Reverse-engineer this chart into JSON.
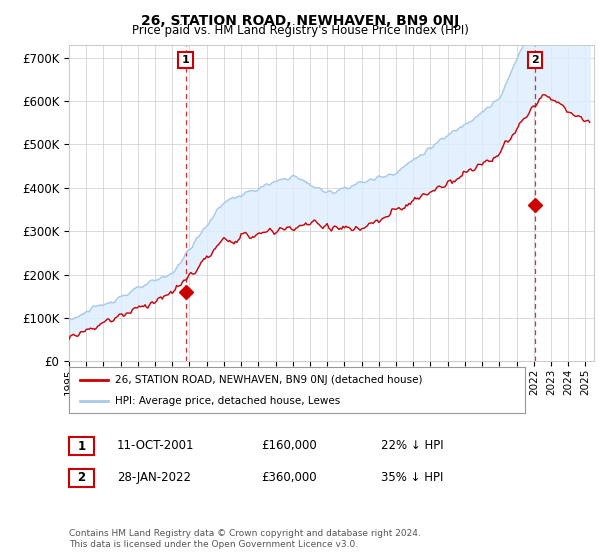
{
  "title": "26, STATION ROAD, NEWHAVEN, BN9 0NJ",
  "subtitle": "Price paid vs. HM Land Registry's House Price Index (HPI)",
  "ylabel_ticks": [
    "£0",
    "£100K",
    "£200K",
    "£300K",
    "£400K",
    "£500K",
    "£600K",
    "£700K"
  ],
  "ylim": [
    0,
    730000
  ],
  "xlim_start": 1995.0,
  "xlim_end": 2025.5,
  "hpi_color": "#a8c8e8",
  "hpi_fill_color": "#ddeeff",
  "price_color": "#cc0000",
  "sale1_date": 2001.78,
  "sale1_price": 160000,
  "sale2_date": 2022.07,
  "sale2_price": 360000,
  "legend_label1": "26, STATION ROAD, NEWHAVEN, BN9 0NJ (detached house)",
  "legend_label2": "HPI: Average price, detached house, Lewes",
  "table_row1": [
    "1",
    "11-OCT-2001",
    "£160,000",
    "22% ↓ HPI"
  ],
  "table_row2": [
    "2",
    "28-JAN-2022",
    "£360,000",
    "35% ↓ HPI"
  ],
  "footnote": "Contains HM Land Registry data © Crown copyright and database right 2024.\nThis data is licensed under the Open Government Licence v3.0.",
  "grid_color": "#cccccc",
  "background_color": "#ffffff"
}
